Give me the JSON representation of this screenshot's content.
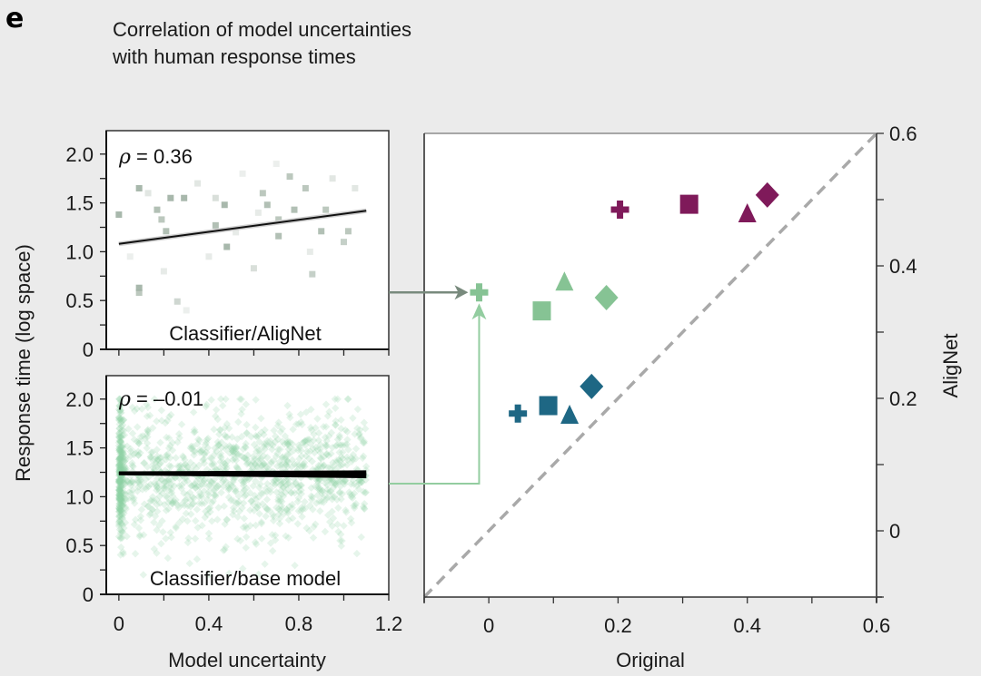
{
  "figure": {
    "panel_letter": "e",
    "title_line1": "Correlation of model uncertainties",
    "title_line2": "with human response times",
    "background": "#ebebeb"
  },
  "chart_data": [
    {
      "id": "top-left",
      "type": "scatter",
      "panel_label": "Classifier/AligNet",
      "rho_symbol": "ρ",
      "rho_text": " = 0.36",
      "xlim": [
        -0.056,
        1.2
      ],
      "ylim": [
        0,
        2.24
      ],
      "xticks": [
        0,
        0.2,
        0.4,
        0.6,
        0.8,
        1.0,
        1.2
      ],
      "xtick_labels": [],
      "yticks": [
        0,
        0.25,
        0.5,
        0.75,
        1.0,
        1.25,
        1.5,
        1.75,
        2.0
      ],
      "ytick_labels": {
        "0": "0",
        "0.5": "0.5",
        "1.0": "1.0",
        "1.5": "1.5",
        "2.0": "2.0"
      },
      "marker_color": "#9fb0a3",
      "points": [
        [
          0.0,
          1.38,
          0.9
        ],
        [
          0.09,
          1.65,
          0.9
        ],
        [
          0.17,
          1.43,
          0.8
        ],
        [
          0.19,
          1.33,
          0.7
        ],
        [
          0.21,
          1.21,
          0.8
        ],
        [
          0.23,
          1.55,
          0.9
        ],
        [
          0.29,
          1.55,
          0.9
        ],
        [
          0.09,
          0.63,
          0.9
        ],
        [
          0.09,
          0.58,
          0.7
        ],
        [
          0.26,
          0.49,
          0.5
        ],
        [
          0.43,
          1.27,
          0.8
        ],
        [
          0.47,
          1.48,
          0.9
        ],
        [
          0.48,
          1.05,
          0.9
        ],
        [
          0.43,
          1.55,
          0.4
        ],
        [
          0.64,
          1.6,
          0.7
        ],
        [
          0.66,
          1.48,
          0.8
        ],
        [
          0.71,
          1.33,
          0.7
        ],
        [
          0.71,
          1.16,
          0.8
        ],
        [
          0.76,
          1.77,
          0.7
        ],
        [
          0.78,
          1.43,
          0.8
        ],
        [
          0.83,
          1.65,
          0.7
        ],
        [
          0.86,
          0.77,
          0.6
        ],
        [
          0.9,
          1.21,
          0.8
        ],
        [
          0.92,
          1.43,
          0.7
        ],
        [
          1.0,
          1.1,
          0.6
        ],
        [
          1.02,
          1.21,
          0.7
        ],
        [
          0.6,
          0.83,
          0.4
        ],
        [
          0.13,
          1.6,
          0.3
        ],
        [
          0.35,
          1.7,
          0.3
        ],
        [
          0.55,
          1.8,
          0.2
        ],
        [
          0.4,
          0.95,
          0.25
        ],
        [
          0.2,
          0.8,
          0.25
        ],
        [
          0.7,
          1.9,
          0.2
        ],
        [
          0.95,
          1.75,
          0.3
        ],
        [
          0.3,
          0.4,
          0.2
        ],
        [
          0.85,
          1.0,
          0.25
        ],
        [
          1.05,
          1.65,
          0.3
        ],
        [
          0.52,
          1.2,
          0.25
        ],
        [
          0.05,
          0.95,
          0.2
        ],
        [
          0.62,
          1.4,
          0.25
        ]
      ],
      "fit": {
        "x": [
          0,
          1.1
        ],
        "y": [
          1.08,
          1.42
        ]
      }
    },
    {
      "id": "bottom-left",
      "type": "scatter",
      "panel_label": "Classifier/base model",
      "rho_symbol": "ρ",
      "rho_text": " = –0.01",
      "xlabel": "Model uncertainty",
      "ylabel": "Response time (log space)",
      "xlim": [
        -0.056,
        1.2
      ],
      "ylim": [
        0,
        2.24
      ],
      "xticks": [
        0,
        0.2,
        0.4,
        0.6,
        0.8,
        1.0,
        1.2
      ],
      "xtick_labels": {
        "0": "0",
        "0.4": "0.4",
        "0.8": "0.8",
        "1.2": "1.2"
      },
      "yticks": [
        0,
        0.25,
        0.5,
        0.75,
        1.0,
        1.25,
        1.5,
        1.75,
        2.0
      ],
      "ytick_labels": {
        "0": "0",
        "0.5": "0.5",
        "1.0": "1.0",
        "1.5": "1.5",
        "2.0": "2.0"
      },
      "marker_color": "#8fd3a2",
      "cloud": {
        "count": 1400,
        "x_range": [
          0,
          1.1
        ],
        "x_zero_fraction": 0.18,
        "y_mean": 1.23,
        "y_sd": 0.33,
        "y_range": [
          0.2,
          2.0
        ],
        "seed": 7
      },
      "fit": {
        "x": [
          0,
          1.1
        ],
        "y": [
          1.24,
          1.23
        ],
        "ci_halfwidth": [
          0.02,
          0.04
        ]
      }
    },
    {
      "id": "right",
      "type": "scatter",
      "xlabel": "Original",
      "ylabel": "AligNet",
      "xlim": [
        -0.1,
        0.6
      ],
      "ylim": [
        -0.1,
        0.6
      ],
      "xticks": [
        -0.1,
        0,
        0.1,
        0.2,
        0.3,
        0.4,
        0.5,
        0.6
      ],
      "xtick_labels": {
        "0": "0",
        "0.2": "0.2",
        "0.4": "0.4",
        "0.6": "0.6"
      },
      "yticks": [
        -0.1,
        0,
        0.1,
        0.2,
        0.3,
        0.4,
        0.5,
        0.6
      ],
      "ytick_labels": {
        "0": "0",
        "0.2": "0.2",
        "0.4": "0.4",
        "0.6": "0.6"
      },
      "identity_line_color": "#a9a9a9",
      "series": [
        {
          "name": "purple",
          "color": "#7f1a5a",
          "points": [
            {
              "marker": "cross",
              "x": 0.203,
              "y": 0.485
            },
            {
              "marker": "square",
              "x": 0.31,
              "y": 0.493
            },
            {
              "marker": "triangle",
              "x": 0.4,
              "y": 0.478
            },
            {
              "marker": "diamond",
              "x": 0.431,
              "y": 0.507
            }
          ]
        },
        {
          "name": "green",
          "color": "#86c394",
          "points": [
            {
              "marker": "cross",
              "x": -0.015,
              "y": 0.36
            },
            {
              "marker": "square",
              "x": 0.082,
              "y": 0.332
            },
            {
              "marker": "triangle",
              "x": 0.117,
              "y": 0.375
            },
            {
              "marker": "diamond",
              "x": 0.182,
              "y": 0.352
            }
          ]
        },
        {
          "name": "blue",
          "color": "#1e6784",
          "points": [
            {
              "marker": "cross",
              "x": 0.045,
              "y": 0.177
            },
            {
              "marker": "square",
              "x": 0.092,
              "y": 0.189
            },
            {
              "marker": "triangle",
              "x": 0.125,
              "y": 0.174
            },
            {
              "marker": "diamond",
              "x": 0.159,
              "y": 0.218
            }
          ]
        }
      ]
    }
  ],
  "arrows": [
    {
      "name": "alignet-arrow",
      "from_panel": "top-left",
      "to": "green cross",
      "color": "#788a7d"
    },
    {
      "name": "base-model-arrow",
      "from_panel": "bottom-left",
      "to": "green cross",
      "color": "#93cda0"
    }
  ]
}
